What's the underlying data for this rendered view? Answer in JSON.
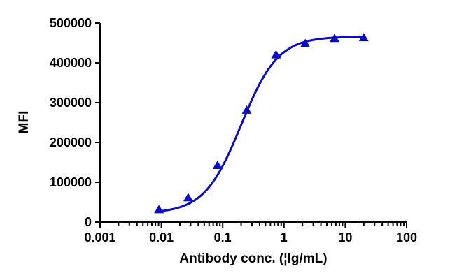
{
  "chart_data": {
    "type": "line",
    "title": "",
    "xlabel": "Antibody conc. (¦lg/mL)",
    "ylabel": "MFI",
    "xscale": "log",
    "xlim": [
      0.001,
      100
    ],
    "ylim": [
      0,
      500000
    ],
    "x_ticks": [
      "0.001",
      "0.01",
      "0.1",
      "1",
      "10",
      "100"
    ],
    "y_ticks": [
      "0",
      "100000",
      "200000",
      "300000",
      "400000",
      "500000"
    ],
    "grid": false,
    "legend": null,
    "series": [
      {
        "name": "MFI",
        "color": "#0a0acc",
        "marker": "triangle",
        "fit": "sigmoidal 4PL curve",
        "x": [
          0.00914,
          0.0274,
          0.0823,
          0.247,
          0.741,
          2.22,
          6.67,
          20
        ],
        "y": [
          31000,
          61000,
          142000,
          281000,
          420000,
          448000,
          461000,
          463000
        ]
      }
    ]
  }
}
